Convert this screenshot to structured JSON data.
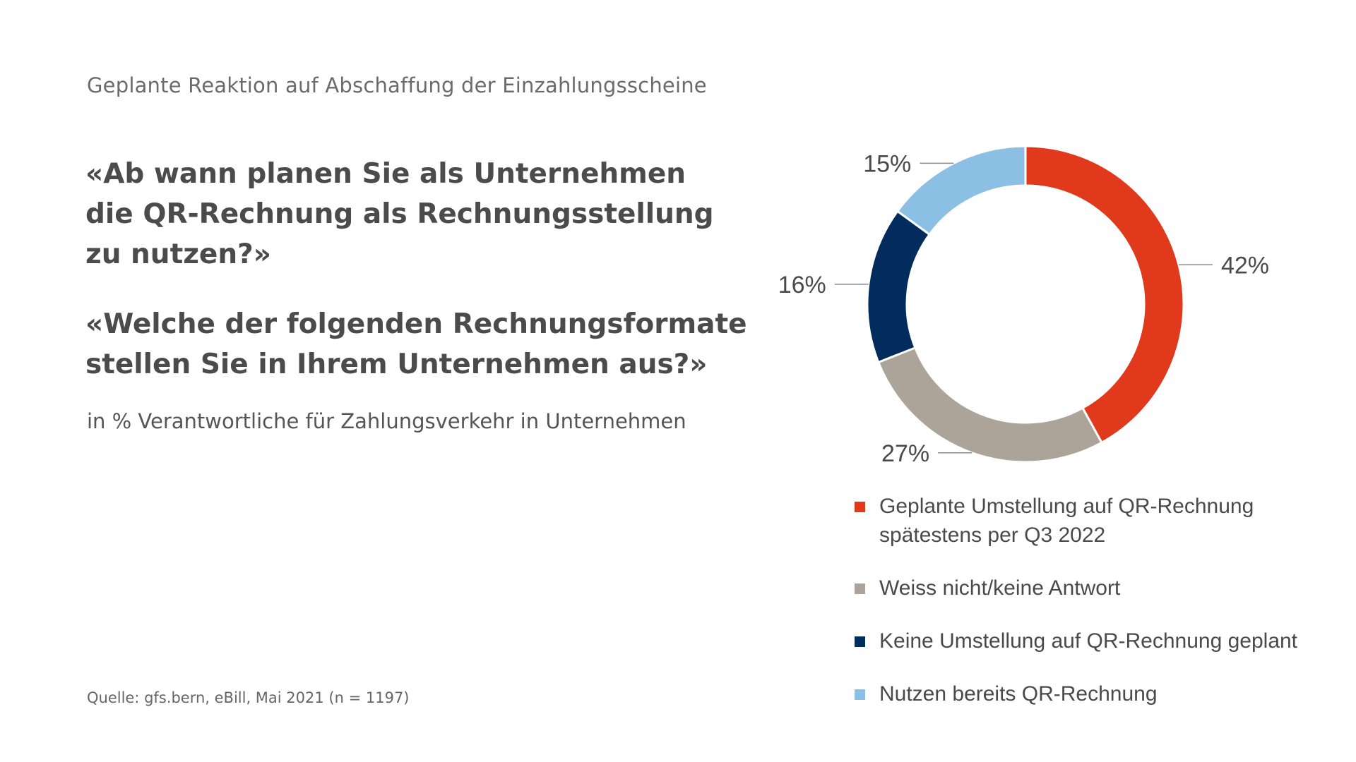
{
  "header": {
    "subtitle": "Geplante Reaktion auf Abschaffung der Einzahlungsscheine"
  },
  "questions": [
    {
      "lines": [
        "«Ab wann planen Sie als Unternehmen",
        "die QR-Rechnung als Rechnungsstellung",
        "zu nutzen?»"
      ]
    },
    {
      "lines": [
        "«Welche der folgenden Rechnungsformate",
        "stellen Sie in Ihrem Unternehmen aus?»"
      ]
    }
  ],
  "unit_note": "in % Verantwortliche für Zahlungsverkehr in Unternehmen",
  "source": "Quelle: gfs.bern, eBill, Mai 2021 (n = 1197)",
  "chart_data": {
    "type": "pie",
    "variant": "donut",
    "start_angle_deg": 0,
    "direction": "clockwise",
    "slices": [
      {
        "label_lines": [
          "Geplante Umstellung auf QR-Rechnung",
          "spätestens per Q3 2022"
        ],
        "value": 42,
        "value_label": "42%",
        "color": "#e0391c"
      },
      {
        "label_lines": [
          "Weiss nicht/keine Antwort"
        ],
        "value": 27,
        "value_label": "27%",
        "color": "#ada499"
      },
      {
        "label_lines": [
          "Keine Umstellung auf QR-Rechnung geplant"
        ],
        "value": 16,
        "value_label": "16%",
        "color": "#012c5d"
      },
      {
        "label_lines": [
          "Nutzen bereits QR-Rechnung"
        ],
        "value": 15,
        "value_label": "15%",
        "color": "#8bc0e4"
      }
    ],
    "legend_position": "bottom-right"
  }
}
